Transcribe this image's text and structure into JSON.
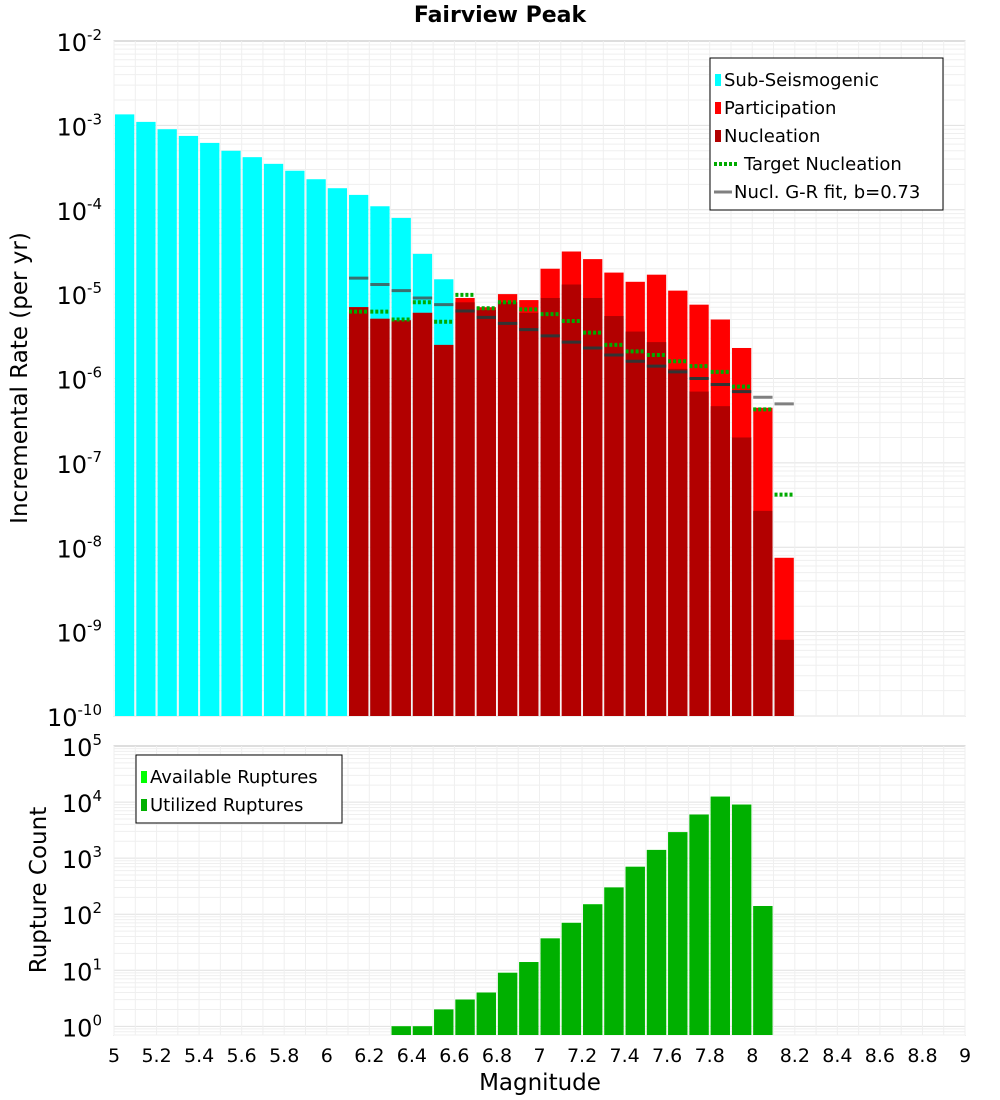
{
  "chart_data": [
    {
      "type": "bar",
      "title": "Fairview Peak",
      "xlabel": "",
      "ylabel": "Incremental Rate (per yr)",
      "yscale": "log",
      "xlim": [
        5,
        9
      ],
      "ylim": [
        1e-10,
        0.01
      ],
      "grid": true,
      "legend_position": "top-right",
      "bar_width": 0.1,
      "y_tick_labels": [
        {
          "exp": -10,
          "base": "10",
          "sup": "-10"
        },
        {
          "exp": -9,
          "base": "10",
          "sup": "-9"
        },
        {
          "exp": -8,
          "base": "10",
          "sup": "-8"
        },
        {
          "exp": -7,
          "base": "10",
          "sup": "-7"
        },
        {
          "exp": -6,
          "base": "10",
          "sup": "-6"
        },
        {
          "exp": -5,
          "base": "10",
          "sup": "-5"
        },
        {
          "exp": -4,
          "base": "10",
          "sup": "-4"
        },
        {
          "exp": -3,
          "base": "10",
          "sup": "-3"
        },
        {
          "exp": -2,
          "base": "10",
          "sup": "-2"
        }
      ],
      "series": [
        {
          "name": "Sub-Seismogenic",
          "kind": "bar",
          "color": "#00ffff",
          "x": [
            5.0,
            5.1,
            5.2,
            5.3,
            5.4,
            5.5,
            5.6,
            5.7,
            5.8,
            5.9,
            6.0,
            6.1,
            6.2,
            6.3,
            6.4,
            6.5
          ],
          "values": [
            0.00135,
            0.0011,
            0.0009,
            0.00075,
            0.00062,
            0.0005,
            0.00042,
            0.00035,
            0.00029,
            0.00023,
            0.00018,
            0.00015,
            0.00011,
            8e-05,
            3e-05,
            1.5e-05
          ]
        },
        {
          "name": "Participation",
          "kind": "bar",
          "color": "#ff0000",
          "x": [
            6.1,
            6.2,
            6.3,
            6.4,
            6.5,
            6.6,
            6.7,
            6.8,
            6.9,
            7.0,
            7.1,
            7.2,
            7.3,
            7.4,
            7.5,
            7.6,
            7.7,
            7.8,
            7.9,
            8.0,
            8.1
          ],
          "values": [
            7e-06,
            5.1e-06,
            4.9e-06,
            6e-06,
            2.5e-06,
            9e-06,
            7e-06,
            1e-05,
            8.5e-06,
            2e-05,
            3.2e-05,
            2.6e-05,
            1.8e-05,
            1.4e-05,
            1.7e-05,
            1.1e-05,
            7.5e-06,
            5e-06,
            2.3e-06,
            4.5e-07,
            7.5e-09
          ]
        },
        {
          "name": "Nucleation",
          "kind": "bar",
          "color": "#b20000",
          "x": [
            6.1,
            6.2,
            6.3,
            6.4,
            6.5,
            6.6,
            6.7,
            6.8,
            6.9,
            7.0,
            7.1,
            7.2,
            7.3,
            7.4,
            7.5,
            7.6,
            7.7,
            7.8,
            7.9,
            8.0,
            8.1
          ],
          "values": [
            7e-06,
            5.1e-06,
            4.9e-06,
            6e-06,
            2.5e-06,
            8e-06,
            6.5e-06,
            8e-06,
            6e-06,
            9e-06,
            1.3e-05,
            9e-06,
            5.5e-06,
            3.6e-06,
            2.7e-06,
            1.3e-06,
            7e-07,
            4.7e-07,
            2e-07,
            2.7e-08,
            8e-10
          ]
        },
        {
          "name": "Target Nucleation",
          "kind": "dotted-step",
          "color": "#00aa00",
          "x": [
            6.1,
            6.2,
            6.3,
            6.4,
            6.5,
            6.6,
            6.7,
            6.8,
            6.9,
            7.0,
            7.1,
            7.2,
            7.3,
            7.4,
            7.5,
            7.6,
            7.7,
            7.8,
            7.9,
            8.0,
            8.1
          ],
          "values": [
            6.2e-06,
            6.2e-06,
            5e-06,
            8e-06,
            4.7e-06,
            9.8e-06,
            6.8e-06,
            8e-06,
            6.6e-06,
            5.8e-06,
            4.8e-06,
            3.5e-06,
            2.5e-06,
            2.1e-06,
            1.9e-06,
            1.6e-06,
            1.4e-06,
            1.2e-06,
            8e-07,
            4.3e-07,
            4.2e-08
          ]
        },
        {
          "name": "Nucl. G-R fit, b=0.73",
          "kind": "step",
          "color": "#808080",
          "x": [
            6.1,
            6.2,
            6.3,
            6.4,
            6.5,
            6.6,
            6.7,
            6.8,
            6.9,
            7.0,
            7.1,
            7.2,
            7.3,
            7.4,
            7.5,
            7.6,
            7.7,
            7.8,
            7.9,
            8.0,
            8.1
          ],
          "values": [
            1.55e-05,
            1.3e-05,
            1.1e-05,
            9e-06,
            7.5e-06,
            6.3e-06,
            5.3e-06,
            4.5e-06,
            3.8e-06,
            3.2e-06,
            2.7e-06,
            2.3e-06,
            1.9e-06,
            1.6e-06,
            1.4e-06,
            1.2e-06,
            1e-06,
            8.5e-07,
            7e-07,
            6e-07,
            5e-07
          ]
        }
      ],
      "legend": [
        {
          "label": "Sub-Seismogenic",
          "color": "#00ffff",
          "style": "block"
        },
        {
          "label": "Participation",
          "color": "#ff0000",
          "style": "block"
        },
        {
          "label": "Nucleation",
          "color": "#b20000",
          "style": "block"
        },
        {
          "label": "Target Nucleation",
          "color": "#00aa00",
          "style": "dotted"
        },
        {
          "label": "Nucl. G-R fit, b=0.73",
          "color": "#808080",
          "style": "solid"
        }
      ]
    },
    {
      "type": "bar",
      "title": "",
      "xlabel": "Magnitude",
      "ylabel": "Rupture Count",
      "yscale": "log",
      "xlim": [
        5,
        9
      ],
      "ylim": [
        0.7,
        100000
      ],
      "grid": true,
      "legend_position": "top-left",
      "bar_width": 0.1,
      "x_tick_labels": [
        "5",
        "5.2",
        "5.4",
        "5.6",
        "5.8",
        "6",
        "6.2",
        "6.4",
        "6.6",
        "6.8",
        "7",
        "7.2",
        "7.4",
        "7.6",
        "7.8",
        "8",
        "8.2",
        "8.4",
        "8.6",
        "8.8",
        "9"
      ],
      "y_tick_labels": [
        {
          "exp": 0,
          "base": "10",
          "sup": "0"
        },
        {
          "exp": 1,
          "base": "10",
          "sup": "1"
        },
        {
          "exp": 2,
          "base": "10",
          "sup": "2"
        },
        {
          "exp": 3,
          "base": "10",
          "sup": "3"
        },
        {
          "exp": 4,
          "base": "10",
          "sup": "4"
        },
        {
          "exp": 5,
          "base": "10",
          "sup": "5"
        }
      ],
      "series": [
        {
          "name": "Available Ruptures",
          "kind": "bar",
          "color": "#00ff00",
          "x": [
            6.3,
            6.4,
            6.5,
            6.6,
            6.7,
            6.8,
            6.9,
            7.0,
            7.1,
            7.2,
            7.3,
            7.4,
            7.5,
            7.6,
            7.7,
            7.8,
            7.9,
            8.0
          ],
          "values": [
            1,
            1,
            2,
            3,
            4,
            9,
            14,
            37,
            70,
            150,
            300,
            700,
            1400,
            2900,
            6000,
            12500,
            9000,
            140
          ]
        },
        {
          "name": "Utilized Ruptures",
          "kind": "bar",
          "color": "#00b000",
          "x": [
            6.3,
            6.4,
            6.5,
            6.6,
            6.7,
            6.8,
            6.9,
            7.0,
            7.1,
            7.2,
            7.3,
            7.4,
            7.5,
            7.6,
            7.7,
            7.8,
            7.9,
            8.0
          ],
          "values": [
            1,
            1,
            2,
            3,
            4,
            9,
            14,
            37,
            70,
            150,
            300,
            700,
            1400,
            2900,
            6000,
            12500,
            9000,
            140
          ]
        }
      ],
      "legend": [
        {
          "label": "Available Ruptures",
          "color": "#00ff00",
          "style": "block"
        },
        {
          "label": "Utilized Ruptures",
          "color": "#00b000",
          "style": "block"
        }
      ]
    }
  ]
}
